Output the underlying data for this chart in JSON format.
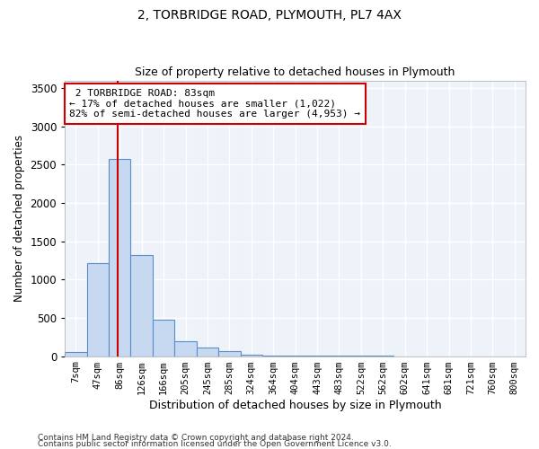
{
  "title": "2, TORBRIDGE ROAD, PLYMOUTH, PL7 4AX",
  "subtitle": "Size of property relative to detached houses in Plymouth",
  "xlabel": "Distribution of detached houses by size in Plymouth",
  "ylabel": "Number of detached properties",
  "bar_labels": [
    "7sqm",
    "47sqm",
    "86sqm",
    "126sqm",
    "166sqm",
    "205sqm",
    "245sqm",
    "285sqm",
    "324sqm",
    "364sqm",
    "404sqm",
    "443sqm",
    "483sqm",
    "522sqm",
    "562sqm",
    "602sqm",
    "641sqm",
    "681sqm",
    "721sqm",
    "760sqm",
    "800sqm"
  ],
  "bar_values": [
    50,
    1220,
    2580,
    1320,
    480,
    200,
    110,
    60,
    20,
    10,
    5,
    3,
    2,
    1,
    1,
    0,
    0,
    0,
    0,
    0,
    0
  ],
  "bar_color": "#c6d9f1",
  "bar_edgecolor": "#5b8dc8",
  "marker_label": "2 TORBRIDGE ROAD: 83sqm",
  "pct_smaller": "17% of detached houses are smaller (1,022)",
  "pct_larger": "82% of semi-detached houses are larger (4,953)",
  "vline_color": "#cc0000",
  "annotation_box_edgecolor": "#cc0000",
  "ylim": [
    0,
    3600
  ],
  "yticks": [
    0,
    500,
    1000,
    1500,
    2000,
    2500,
    3000,
    3500
  ],
  "bg_color": "#eef2f9",
  "grid_color": "#ffffff",
  "title_fontsize": 10,
  "subtitle_fontsize": 9,
  "footer1": "Contains HM Land Registry data © Crown copyright and database right 2024.",
  "footer2": "Contains public sector information licensed under the Open Government Licence v3.0."
}
